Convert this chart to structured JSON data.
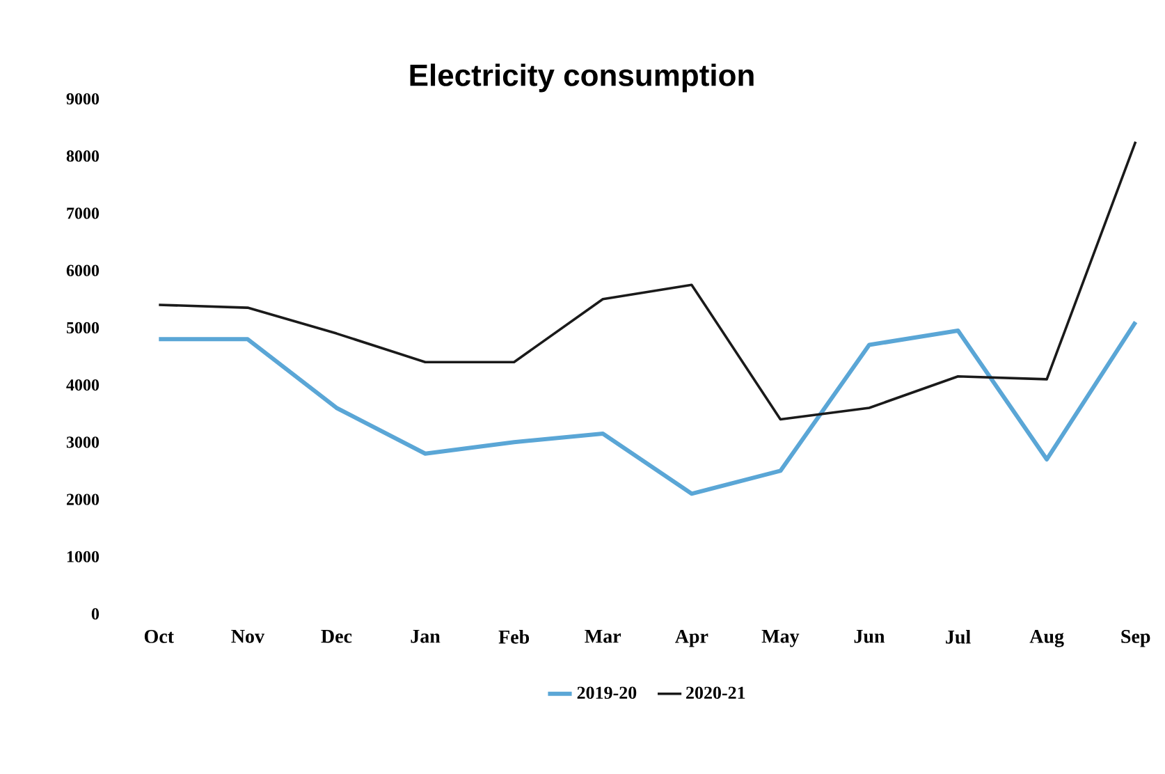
{
  "chart_data": {
    "type": "line",
    "title": "Electricity consumption",
    "categories": [
      "Oct",
      "Nov",
      "Dec",
      "Jan",
      "Feb",
      "Mar",
      "Apr",
      "May",
      "Jun",
      "Jul",
      "Aug",
      "Sep"
    ],
    "series": [
      {
        "name": "2019-20",
        "color": "#5aa6d6",
        "values": [
          4800,
          4800,
          3600,
          2800,
          3000,
          3150,
          2100,
          2500,
          4700,
          4950,
          2700,
          5100
        ]
      },
      {
        "name": "2020-21",
        "color": "#1a1a1a",
        "values": [
          5400,
          5350,
          4900,
          4400,
          4400,
          5500,
          5750,
          3400,
          3600,
          4150,
          4100,
          8250
        ]
      }
    ],
    "ylim": [
      0,
      9000
    ],
    "yticks": [
      0,
      1000,
      2000,
      3000,
      4000,
      5000,
      6000,
      7000,
      8000,
      9000
    ],
    "grid": false,
    "legend": "bottom",
    "marker": "none",
    "line_style": "solid"
  }
}
